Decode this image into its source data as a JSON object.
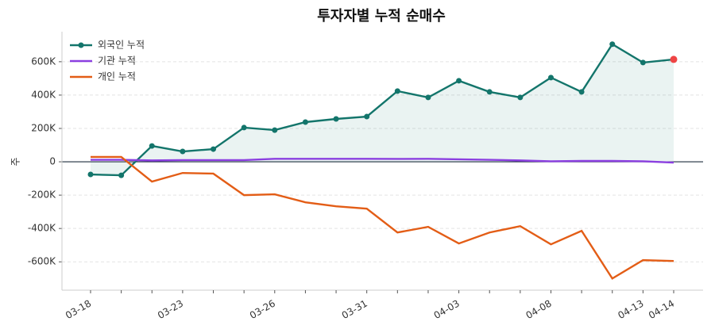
{
  "chart_data": {
    "type": "line",
    "title": "투자자별 누적 순매수",
    "y_label": "주",
    "categories": [
      "03-18",
      null,
      null,
      "03-23",
      null,
      null,
      "03-26",
      null,
      null,
      "03-31",
      null,
      null,
      "04-03",
      null,
      null,
      "04-08",
      null,
      null,
      "04-13",
      "04-14"
    ],
    "series": [
      {
        "name": "외국인 누적",
        "color": "#13756b",
        "markers": true,
        "fill": true,
        "highlight_last": "#ef4444",
        "values": [
          -76000,
          -81000,
          95000,
          62000,
          76000,
          205000,
          190000,
          238000,
          257000,
          271000,
          424000,
          386000,
          486000,
          419000,
          386000,
          505000,
          419000,
          705000,
          595000,
          614000
        ]
      },
      {
        "name": "기관 누적",
        "color": "#8b3fe0",
        "markers": false,
        "values": [
          12000,
          12000,
          8000,
          10000,
          10000,
          10000,
          18000,
          18000,
          18000,
          18000,
          17000,
          18000,
          15000,
          12000,
          8000,
          3000,
          5000,
          5000,
          3000,
          -5000
        ]
      },
      {
        "name": "개인 누적",
        "color": "#e35d16",
        "markers": false,
        "values": [
          29000,
          29000,
          -119000,
          -67000,
          -71000,
          -200000,
          -195000,
          -243000,
          -267000,
          -281000,
          -424000,
          -390000,
          -490000,
          -424000,
          -386000,
          -495000,
          -414000,
          -700000,
          -590000,
          -595000
        ]
      }
    ],
    "ylim": [
      -770000,
      780000
    ],
    "yticks": [
      {
        "value": -600000,
        "label": "-600K"
      },
      {
        "value": -400000,
        "label": "-400K"
      },
      {
        "value": -200000,
        "label": "-200K"
      },
      0,
      {
        "value": 200000,
        "label": "200K"
      },
      {
        "value": 400000,
        "label": "400K"
      },
      {
        "value": 600000,
        "label": "600K"
      }
    ],
    "grid": true,
    "legend": "upper-left"
  }
}
